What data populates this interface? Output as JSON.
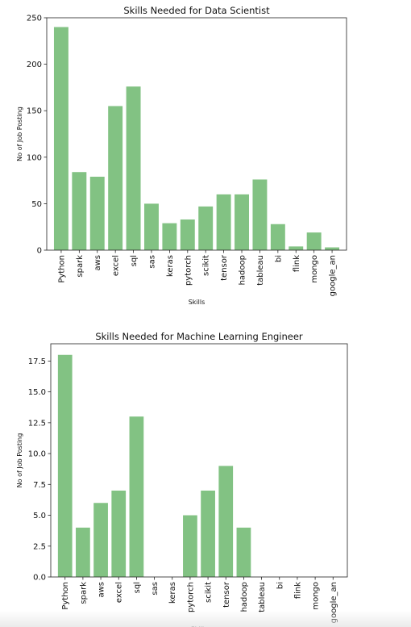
{
  "chart_data": [
    {
      "type": "bar",
      "title": "Skills Needed for Data Scientist",
      "xlabel": "Skills",
      "ylabel": "No of Job Posting",
      "categories": [
        "Python",
        "spark",
        "aws",
        "excel",
        "sql",
        "sas",
        "keras",
        "pytorch",
        "scikit",
        "tensor",
        "hadoop",
        "tableau",
        "bi",
        "flink",
        "mongo",
        "google_an"
      ],
      "values": [
        240,
        84,
        79,
        155,
        176,
        50,
        29,
        33,
        47,
        60,
        60,
        76,
        28,
        4,
        19,
        3
      ],
      "ylim": [
        0,
        250
      ],
      "yticks": [
        "0",
        "50",
        "100",
        "150",
        "200",
        "250"
      ],
      "color": "#82c283",
      "grid": false
    },
    {
      "type": "bar",
      "title": "Skills Needed for Machine Learning Engineer",
      "xlabel": "Skills",
      "ylabel": "No of Job Posting",
      "categories": [
        "Python",
        "spark",
        "aws",
        "excel",
        "sql",
        "sas",
        "keras",
        "pytorch",
        "scikit",
        "tensor",
        "hadoop",
        "tableau",
        "bi",
        "flink",
        "mongo",
        "google_an"
      ],
      "values": [
        18,
        4,
        6,
        7,
        13,
        0,
        0,
        5,
        7,
        9,
        4,
        0,
        0,
        0,
        0,
        0
      ],
      "ylim": [
        0,
        18.9
      ],
      "yticks": [
        "0.0",
        "2.5",
        "5.0",
        "7.5",
        "10.0",
        "12.5",
        "15.0",
        "17.5"
      ],
      "color": "#82c283",
      "grid": false
    }
  ]
}
